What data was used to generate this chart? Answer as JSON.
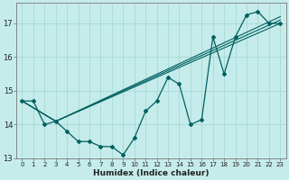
{
  "xlabel": "Humidex (Indice chaleur)",
  "bg_color": "#c5ecea",
  "grid_color": "#a8d8d5",
  "line_color": "#006060",
  "xlim": [
    -0.5,
    23.5
  ],
  "ylim": [
    13.0,
    17.6
  ],
  "yticks": [
    13,
    14,
    15,
    16,
    17
  ],
  "xticks": [
    0,
    1,
    2,
    3,
    4,
    5,
    6,
    7,
    8,
    9,
    10,
    11,
    12,
    13,
    14,
    15,
    16,
    17,
    18,
    19,
    20,
    21,
    22,
    23
  ],
  "main_x": [
    0,
    1,
    2,
    3,
    4,
    5,
    6,
    7,
    8,
    9,
    10,
    11,
    12,
    13,
    14,
    15,
    16,
    17,
    18,
    19,
    20,
    21,
    22,
    23
  ],
  "main_y": [
    14.7,
    14.7,
    14.0,
    14.1,
    13.8,
    13.5,
    13.5,
    13.35,
    13.35,
    13.1,
    13.6,
    14.4,
    14.7,
    15.4,
    15.2,
    14.0,
    14.15,
    16.6,
    15.5,
    16.6,
    17.25,
    17.35,
    17.0,
    17.0
  ],
  "straight_lines": [
    {
      "x": [
        0,
        3,
        23
      ],
      "y": [
        14.7,
        14.1,
        17.0
      ]
    },
    {
      "x": [
        0,
        3,
        23
      ],
      "y": [
        14.7,
        14.1,
        17.1
      ]
    },
    {
      "x": [
        0,
        3,
        23
      ],
      "y": [
        14.7,
        14.1,
        17.2
      ]
    }
  ]
}
